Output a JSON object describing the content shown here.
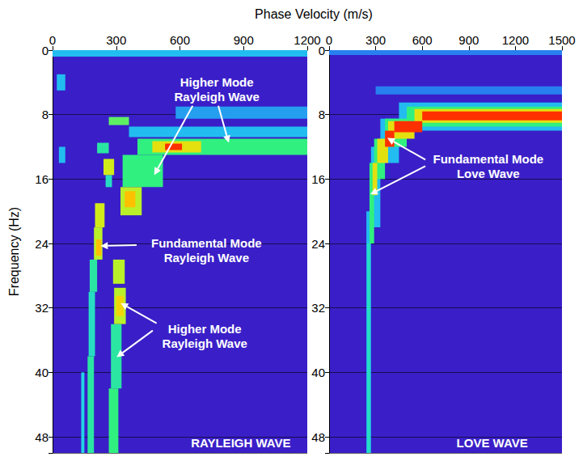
{
  "chart_data": [
    {
      "type": "heatmap",
      "x_label": "Phase Velocity (m/s)",
      "y_label": "Frequency (Hz)",
      "panel_label": "RAYLEIGH WAVE",
      "xlim": [
        0,
        1200
      ],
      "xticks": [
        0,
        300,
        600,
        900,
        1200
      ],
      "ylim": [
        0,
        50
      ],
      "yticks": [
        0,
        8,
        16,
        24,
        32,
        40,
        48
      ],
      "grid": true,
      "color_range": [
        0,
        1
      ],
      "cells": [
        [
          0,
          1200,
          0,
          0.8,
          0.3
        ],
        [
          580,
          1200,
          7,
          8.5,
          0.25
        ],
        [
          360,
          1200,
          9.5,
          10.8,
          0.3
        ],
        [
          20,
          60,
          3,
          5,
          0.3
        ],
        [
          30,
          60,
          12,
          14,
          0.3
        ],
        [
          135,
          150,
          40,
          50,
          0.35
        ],
        [
          210,
          265,
          11.5,
          12.8,
          0.45
        ],
        [
          400,
          1200,
          11,
          13,
          0.5
        ],
        [
          330,
          520,
          13,
          17,
          0.5
        ],
        [
          250,
          280,
          15.5,
          17,
          0.4
        ],
        [
          265,
          360,
          8.3,
          9.3,
          0.55
        ],
        [
          175,
          210,
          26,
          30,
          0.45
        ],
        [
          170,
          200,
          30,
          38,
          0.4
        ],
        [
          165,
          195,
          38,
          50,
          0.45
        ],
        [
          275,
          325,
          34,
          42,
          0.45
        ],
        [
          265,
          310,
          42,
          50,
          0.5
        ],
        [
          320,
          420,
          17,
          20.5,
          0.65
        ],
        [
          240,
          290,
          13.5,
          15.5,
          0.7
        ],
        [
          200,
          245,
          19,
          22,
          0.7
        ],
        [
          195,
          235,
          22,
          26,
          0.65
        ],
        [
          285,
          340,
          26,
          29,
          0.65
        ],
        [
          290,
          345,
          29.5,
          34,
          0.65
        ],
        [
          470,
          700,
          11.3,
          12.7,
          0.75
        ],
        [
          300,
          335,
          30.5,
          33,
          0.8
        ],
        [
          340,
          390,
          17.5,
          19.5,
          0.85
        ],
        [
          205,
          230,
          23.5,
          25.5,
          0.85
        ],
        [
          530,
          610,
          11.6,
          12.4,
          1
        ]
      ],
      "annotations": [
        "Higher Mode Rayleigh Wave",
        "Fundamental Mode Rayleigh Wave",
        "Higher Mode Rayleigh Wave"
      ]
    },
    {
      "type": "heatmap",
      "panel_label": "LOVE WAVE",
      "xlim": [
        0,
        1500
      ],
      "xticks": [
        0,
        300,
        600,
        900,
        1200,
        1500
      ],
      "ylim": [
        0,
        50
      ],
      "yticks": [
        0,
        8,
        16,
        24,
        32,
        40,
        48
      ],
      "grid": true,
      "color_range": [
        0,
        1
      ],
      "cells": [
        [
          0,
          1500,
          0,
          0.6,
          0.2
        ],
        [
          300,
          1500,
          4.5,
          5.5,
          0.2
        ],
        [
          450,
          1500,
          6.5,
          10,
          0.3
        ],
        [
          330,
          450,
          8.5,
          14,
          0.3
        ],
        [
          270,
          330,
          12,
          22,
          0.3
        ],
        [
          240,
          270,
          20,
          50,
          0.3
        ],
        [
          500,
          1500,
          7,
          9.5,
          0.5
        ],
        [
          360,
          500,
          8.5,
          12,
          0.5
        ],
        [
          290,
          360,
          11,
          16,
          0.5
        ],
        [
          260,
          290,
          14,
          24,
          0.5
        ],
        [
          245,
          265,
          24,
          50,
          0.4
        ],
        [
          550,
          1500,
          7.3,
          9,
          0.75
        ],
        [
          380,
          550,
          8.8,
          11,
          0.75
        ],
        [
          310,
          380,
          11,
          14,
          0.75
        ],
        [
          280,
          310,
          14,
          18,
          0.75
        ],
        [
          600,
          1500,
          7.6,
          8.7,
          1
        ],
        [
          420,
          600,
          8.8,
          10.2,
          1
        ],
        [
          360,
          420,
          10,
          12,
          1
        ]
      ],
      "annotations": [
        "Fundamental Mode Love Wave"
      ]
    }
  ]
}
